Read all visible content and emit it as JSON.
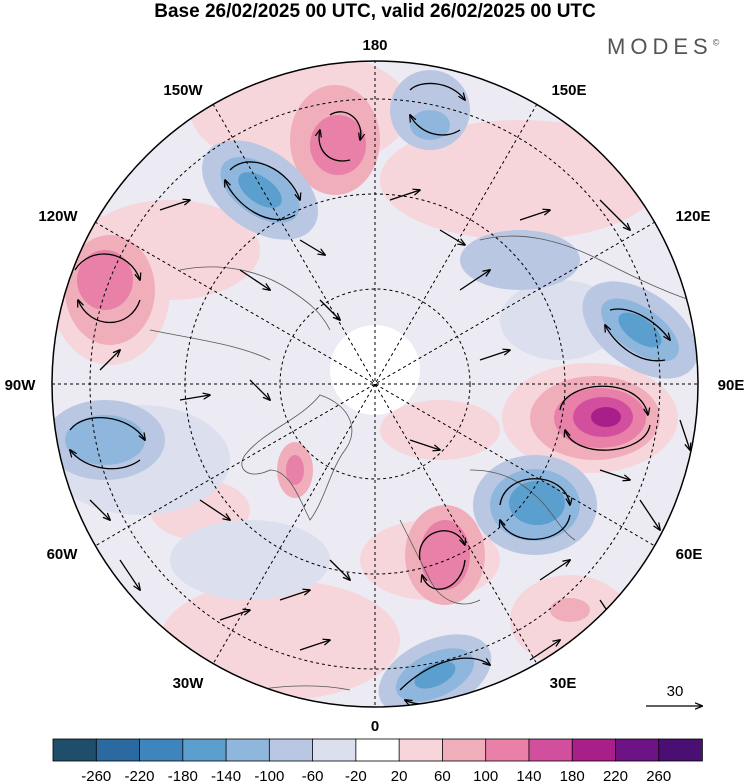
{
  "title": "Base 26/02/2025 00 UTC, valid 26/02/2025 00 UTC",
  "brand": "MODES",
  "brand_mark": "©",
  "map": {
    "projection": "north polar stereographic",
    "longitude_labels": {
      "top": "180",
      "bottom": "0",
      "left": "90W",
      "right": "90E",
      "upper_left_1": "150W",
      "upper_left_2": "120W",
      "upper_right_1": "150E",
      "upper_right_2": "120E",
      "lower_left_1": "60W",
      "lower_left_2": "30W",
      "lower_right_1": "60E",
      "lower_right_2": "30E"
    },
    "reference_vector": "30",
    "anomaly_centers": [
      {
        "sign": "positive",
        "strength": "strong",
        "location": "Ural / West Siberia"
      },
      {
        "sign": "positive",
        "strength": "moderate",
        "location": "Scandinavia"
      },
      {
        "sign": "positive",
        "strength": "moderate",
        "location": "Northwest Canada"
      },
      {
        "sign": "positive",
        "strength": "moderate",
        "location": "Bering Sea"
      },
      {
        "sign": "negative",
        "strength": "strong",
        "location": "Barents / Kara Sea"
      },
      {
        "sign": "negative",
        "strength": "moderate",
        "location": "Eastern Siberia"
      },
      {
        "sign": "negative",
        "strength": "moderate",
        "location": "Gulf of Alaska"
      },
      {
        "sign": "negative",
        "strength": "moderate",
        "location": "Eastern Canada"
      },
      {
        "sign": "negative",
        "strength": "moderate",
        "location": "Mediterranean"
      }
    ]
  },
  "colorbar": {
    "labels": [
      "-260",
      "-220",
      "-180",
      "-140",
      "-100",
      "-60",
      "-20",
      "20",
      "60",
      "100",
      "140",
      "180",
      "220",
      "260"
    ],
    "colors": [
      "#1f4e6b",
      "#2a6aa0",
      "#3f85bd",
      "#5b9fcf",
      "#8fb7dd",
      "#b9c7e3",
      "#dcdfee",
      "#ffffff",
      "#f6d6db",
      "#f0aebb",
      "#e880a8",
      "#d24f9e",
      "#a81f8a",
      "#6e1386",
      "#4a0f73"
    ]
  }
}
